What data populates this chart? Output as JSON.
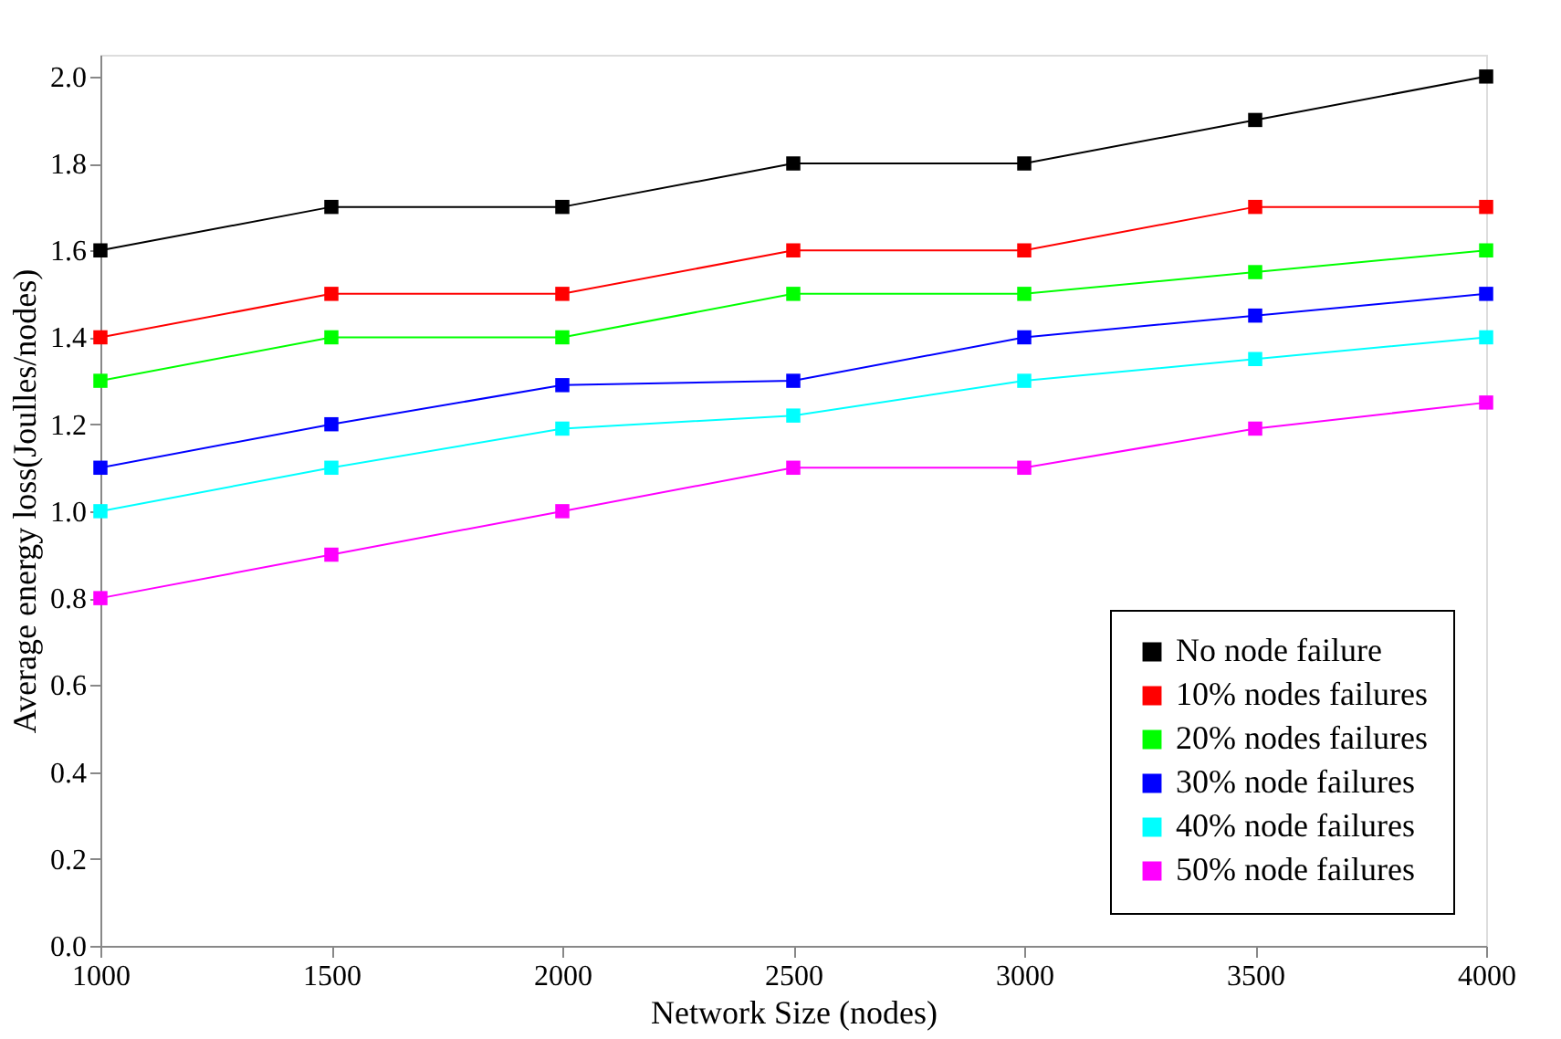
{
  "chart_data": {
    "type": "line",
    "xlabel": "Network Size (nodes)",
    "ylabel": "Average energy loss(Joulles/nodes)",
    "x": [
      1000,
      1500,
      2000,
      2500,
      3000,
      3500,
      4000
    ],
    "series": [
      {
        "name": "No node failure",
        "color": "#000000",
        "values": [
          1.6,
          1.7,
          1.7,
          1.8,
          1.8,
          1.9,
          2.0
        ]
      },
      {
        "name": "10% nodes failures",
        "color": "#ff0000",
        "values": [
          1.4,
          1.5,
          1.5,
          1.6,
          1.6,
          1.7,
          1.7
        ]
      },
      {
        "name": "20% nodes failures",
        "color": "#00ff00",
        "values": [
          1.3,
          1.4,
          1.4,
          1.5,
          1.5,
          1.55,
          1.6
        ]
      },
      {
        "name": "30% node failures",
        "color": "#0000ff",
        "values": [
          1.1,
          1.2,
          1.29,
          1.3,
          1.4,
          1.45,
          1.5
        ]
      },
      {
        "name": "40% node failures",
        "color": "#00ffff",
        "values": [
          1.0,
          1.1,
          1.19,
          1.22,
          1.3,
          1.35,
          1.4
        ]
      },
      {
        "name": "50% node failures",
        "color": "#ff00ff",
        "values": [
          0.8,
          0.9,
          1.0,
          1.1,
          1.1,
          1.19,
          1.25
        ]
      }
    ],
    "xlim": [
      1000,
      4000
    ],
    "xticks": [
      1000,
      1500,
      2000,
      2500,
      3000,
      3500,
      4000
    ],
    "ylim": [
      0,
      2.05
    ],
    "yticks": [
      {
        "value": 0,
        "label": "0.0"
      },
      {
        "value": 0.2,
        "label": "0.2"
      },
      {
        "value": 0.4,
        "label": "0.4"
      },
      {
        "value": 0.6,
        "label": "0.6"
      },
      {
        "value": 0.8,
        "label": "0.8"
      },
      {
        "value": 1,
        "label": "1.0"
      },
      {
        "value": 1.2,
        "label": "1.2"
      },
      {
        "value": 1.4,
        "label": "1.4"
      },
      {
        "value": 1.6,
        "label": "1.6"
      },
      {
        "value": 1.8,
        "label": "1.8"
      },
      {
        "value": 2,
        "label": "2.0"
      }
    ],
    "grid": false,
    "legend": "bottom right",
    "marker": "square",
    "line_style": "solid"
  }
}
